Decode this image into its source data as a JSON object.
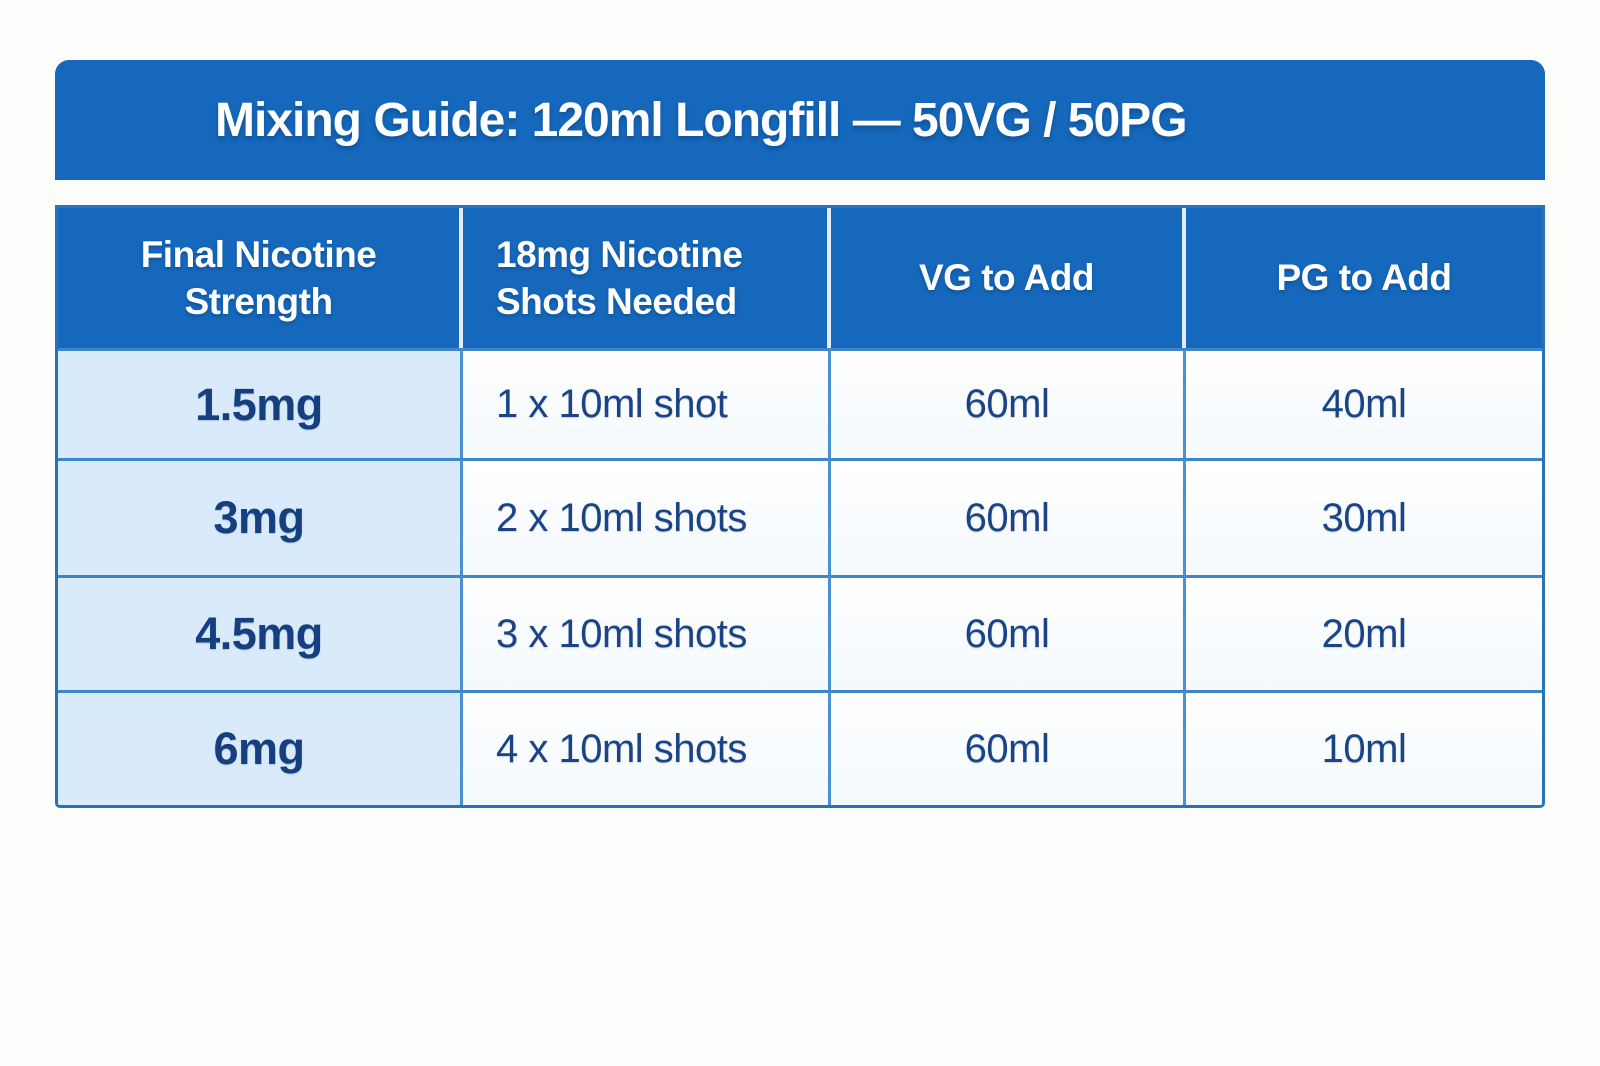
{
  "title": "Mixing Guide: 120ml Longfill — 50VG / 50PG",
  "header_lines": [
    [
      "Final Nicotine",
      "Strength"
    ],
    [
      "18mg Nicotine",
      "Shots Needed"
    ],
    [
      "VG to Add"
    ],
    [
      "PG to Add"
    ]
  ],
  "chart_data": {
    "type": "table",
    "title": "Mixing Guide: 120ml Longfill — 50VG / 50PG",
    "columns": [
      "Final Nicotine Strength",
      "18mg Nicotine Shots Needed",
      "VG to Add",
      "PG to Add"
    ],
    "rows": [
      [
        "1.5mg",
        "1 x 10ml shot",
        "60ml",
        "40ml"
      ],
      [
        "3mg",
        "2 x 10ml shots",
        "60ml",
        "30ml"
      ],
      [
        "4.5mg",
        "3 x 10ml shots",
        "60ml",
        "20ml"
      ],
      [
        "6mg",
        "4 x 10ml shots",
        "60ml",
        "10ml"
      ]
    ],
    "notes": {
      "base_bottle_size": "120ml",
      "vg_pg_ratio": "50VG / 50PG",
      "nicotine_shot_strength": "18mg",
      "vg_constant": "60ml"
    }
  },
  "colors": {
    "brand_blue": "#1568bc",
    "table_border_blue": "#2a72b8",
    "row_divider_blue": "#3e86c8",
    "column_divider_blue": "#4a90d2",
    "header_divider_white": "#e4eefb",
    "first_column_bg": "#d9eafa",
    "cell_bg": "#ffffff",
    "cell_text_navy": "#1b4487",
    "strength_text_navy": "#153f7e",
    "header_text": "#ffffff",
    "page_bg": "#fdfdfc"
  }
}
